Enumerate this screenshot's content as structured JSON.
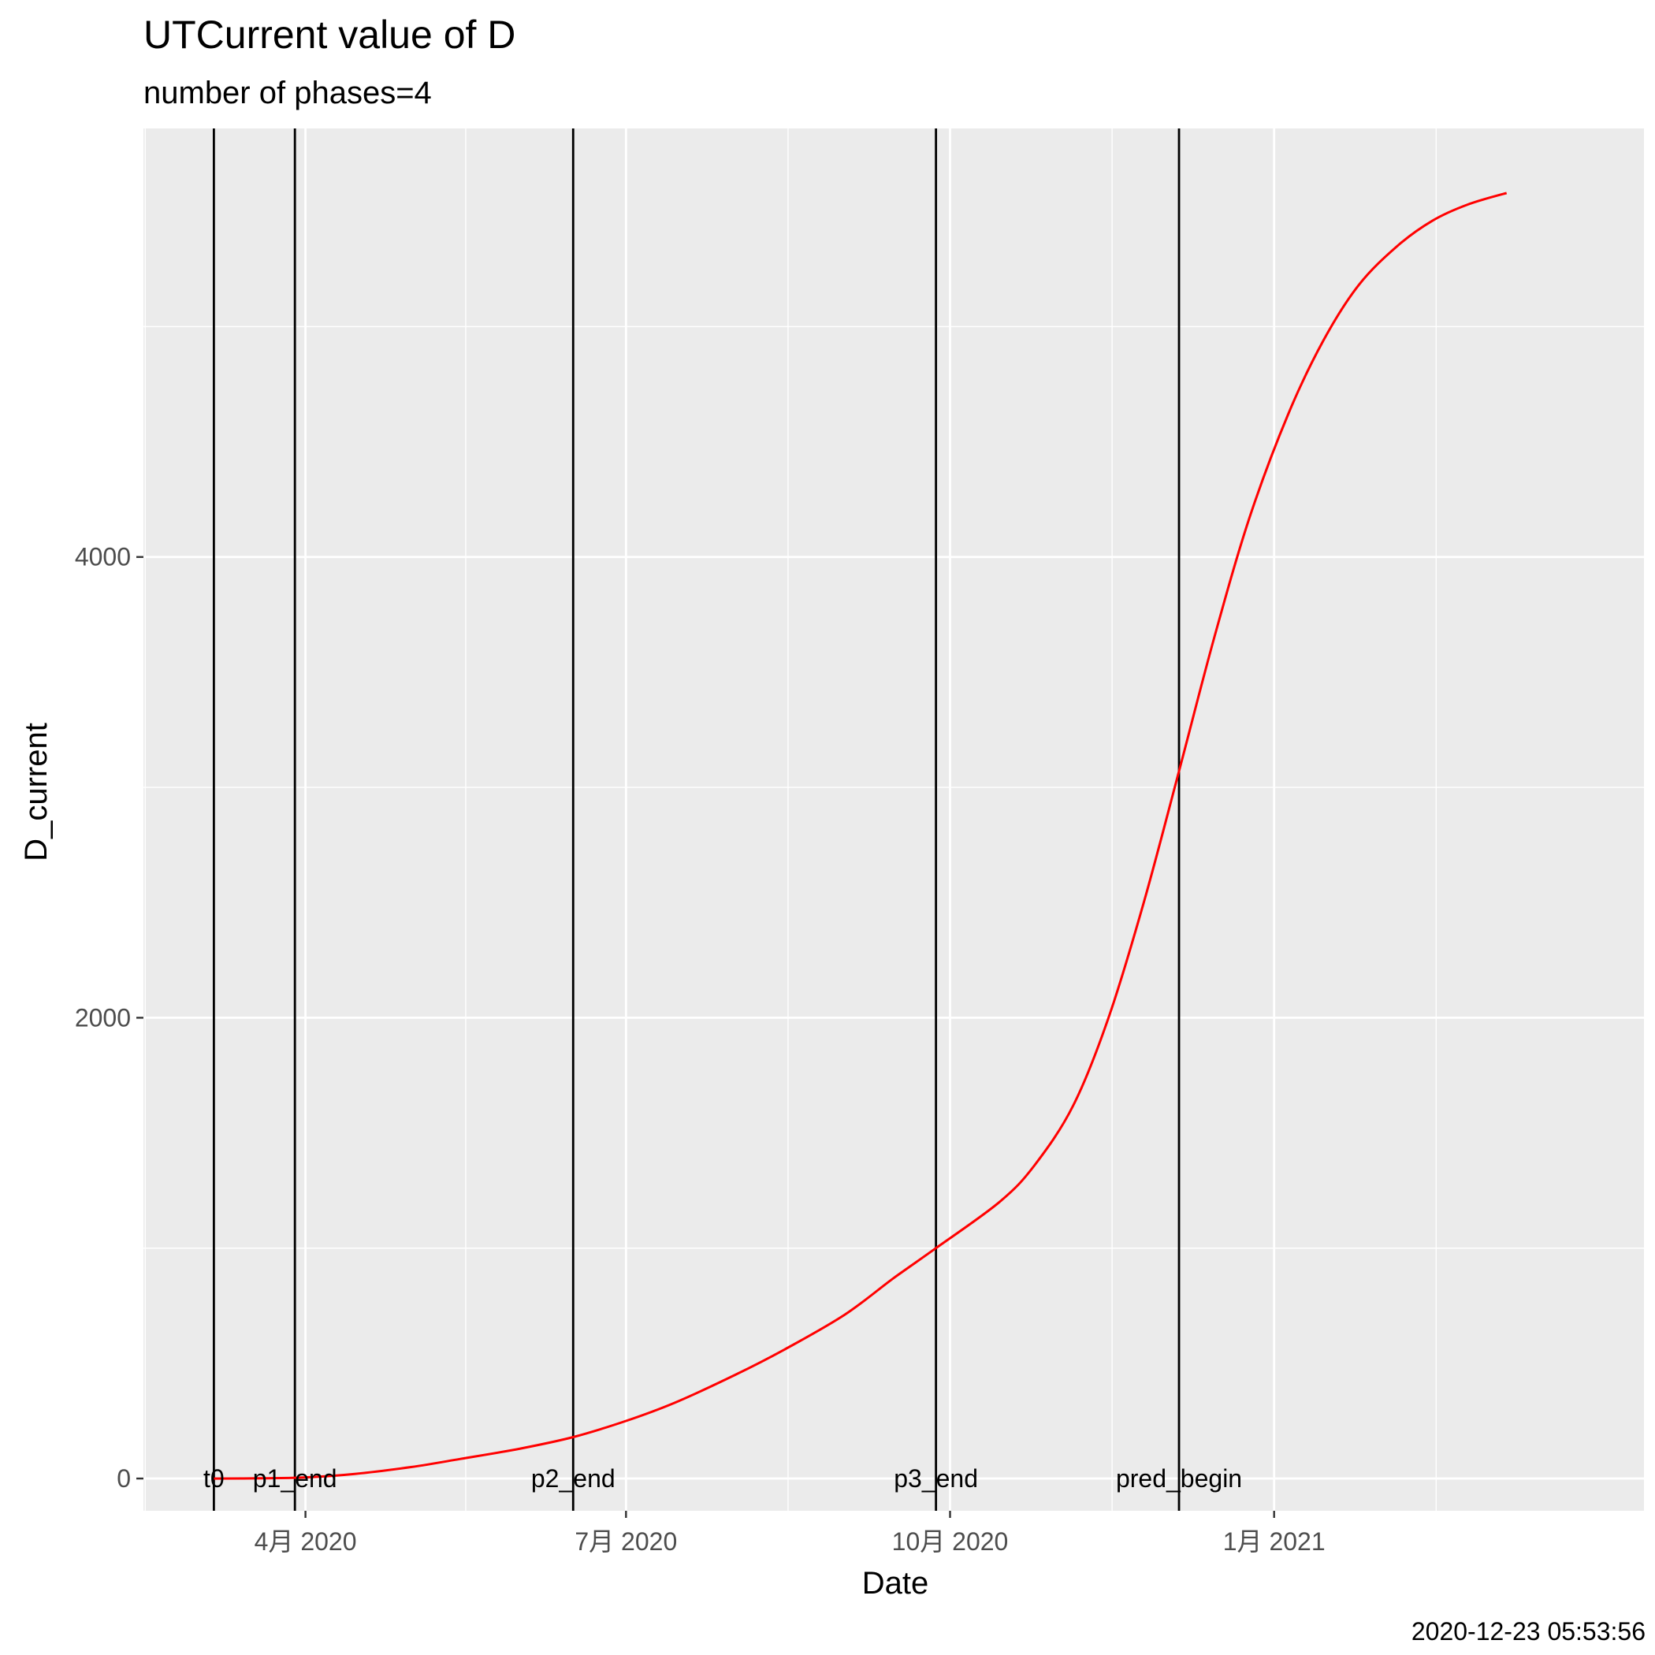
{
  "chart_data": {
    "type": "line",
    "title": "UTCurrent value of D",
    "subtitle": "number of phases=4",
    "xlabel": "Date",
    "ylabel": "D_current",
    "caption": "2020-12-23 05:53:56",
    "xlim": [
      "2020-02-15",
      "2021-04-16"
    ],
    "ylim": [
      -140,
      5860
    ],
    "x_ticks": [
      {
        "date": "2020-04-01",
        "label": "4月 2020"
      },
      {
        "date": "2020-07-01",
        "label": "7月 2020"
      },
      {
        "date": "2020-10-01",
        "label": "10月 2020"
      },
      {
        "date": "2021-01-01",
        "label": "1月 2021"
      }
    ],
    "y_ticks": [
      {
        "value": 0,
        "label": "0"
      },
      {
        "value": 2000,
        "label": "2000"
      },
      {
        "value": 4000,
        "label": "4000"
      }
    ],
    "grid": true,
    "vlines": [
      {
        "date": "2020-03-06",
        "label": "t0"
      },
      {
        "date": "2020-03-29",
        "label": "p1_end"
      },
      {
        "date": "2020-06-16",
        "label": "p2_end"
      },
      {
        "date": "2020-09-27",
        "label": "p3_end"
      },
      {
        "date": "2020-12-05",
        "label": "pred_begin"
      }
    ],
    "series": [
      {
        "color": "#ff0000",
        "points": [
          [
            "2020-03-06",
            0
          ],
          [
            "2020-03-20",
            1
          ],
          [
            "2020-04-01",
            5
          ],
          [
            "2020-04-15",
            20
          ],
          [
            "2020-05-01",
            50
          ],
          [
            "2020-05-15",
            85
          ],
          [
            "2020-06-01",
            130
          ],
          [
            "2020-06-16",
            180
          ],
          [
            "2020-07-01",
            250
          ],
          [
            "2020-07-15",
            330
          ],
          [
            "2020-08-01",
            450
          ],
          [
            "2020-08-15",
            560
          ],
          [
            "2020-09-01",
            710
          ],
          [
            "2020-09-15",
            870
          ],
          [
            "2020-09-27",
            1000
          ],
          [
            "2020-10-15",
            1200
          ],
          [
            "2020-10-25",
            1360
          ],
          [
            "2020-11-05",
            1620
          ],
          [
            "2020-11-15",
            2000
          ],
          [
            "2020-11-25",
            2500
          ],
          [
            "2020-12-05",
            3070
          ],
          [
            "2020-12-15",
            3650
          ],
          [
            "2020-12-25",
            4170
          ],
          [
            "2021-01-05",
            4620
          ],
          [
            "2021-01-15",
            4940
          ],
          [
            "2021-01-25",
            5180
          ],
          [
            "2021-02-05",
            5350
          ],
          [
            "2021-02-15",
            5460
          ],
          [
            "2021-02-25",
            5530
          ],
          [
            "2021-03-08",
            5580
          ]
        ]
      }
    ]
  }
}
